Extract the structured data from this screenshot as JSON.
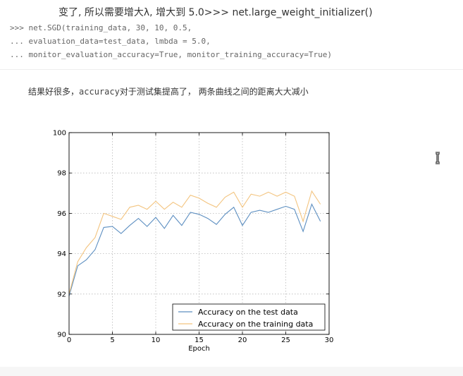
{
  "heading": "变了, 所以需要增大λ, 增大到 5.0>>> net.large_weight_initializer()",
  "code_lines": [
    ">>> net.SGD(training_data, 30, 10, 0.5,",
    "... evaluation_data=test_data, lmbda = 5.0,",
    "... monitor_evaluation_accuracy=True, monitor_training_accuracy=True)"
  ],
  "paragraph": {
    "before": "结果好很多，",
    "code": "accuracy",
    "after": "对于测试集提高了，  两条曲线之间的距离大大减小"
  },
  "colors": {
    "test_series": "#5d8fc1",
    "training_series": "#f3c47f",
    "grid": "#b8b8b8"
  },
  "chart_data": {
    "type": "line",
    "xlabel": "Epoch",
    "ylabel": "",
    "xlim": [
      0,
      30
    ],
    "ylim": [
      90,
      100
    ],
    "xticks": [
      0,
      5,
      10,
      15,
      20,
      25,
      30
    ],
    "yticks": [
      90,
      92,
      94,
      96,
      98,
      100
    ],
    "grid": true,
    "legend_position": "bottom-right",
    "x": [
      0,
      1,
      2,
      3,
      4,
      5,
      6,
      7,
      8,
      9,
      10,
      11,
      12,
      13,
      14,
      15,
      16,
      17,
      18,
      19,
      20,
      21,
      22,
      23,
      24,
      25,
      26,
      27,
      28,
      29
    ],
    "series": [
      {
        "name": "Accuracy on the test data",
        "values": [
          91.9,
          93.4,
          93.7,
          94.2,
          95.3,
          95.35,
          95.0,
          95.4,
          95.75,
          95.35,
          95.8,
          95.25,
          95.9,
          95.4,
          96.05,
          95.95,
          95.75,
          95.45,
          95.95,
          96.3,
          95.4,
          96.05,
          96.15,
          96.05,
          96.2,
          96.35,
          96.2,
          95.1,
          96.45,
          95.6
        ]
      },
      {
        "name": "Accuracy on the training data",
        "values": [
          92.0,
          93.6,
          94.3,
          94.8,
          96.0,
          95.85,
          95.7,
          96.3,
          96.4,
          96.2,
          96.6,
          96.2,
          96.55,
          96.3,
          96.9,
          96.75,
          96.5,
          96.3,
          96.8,
          97.05,
          96.3,
          96.95,
          96.85,
          97.05,
          96.85,
          97.05,
          96.85,
          95.6,
          97.1,
          96.45
        ]
      }
    ]
  }
}
